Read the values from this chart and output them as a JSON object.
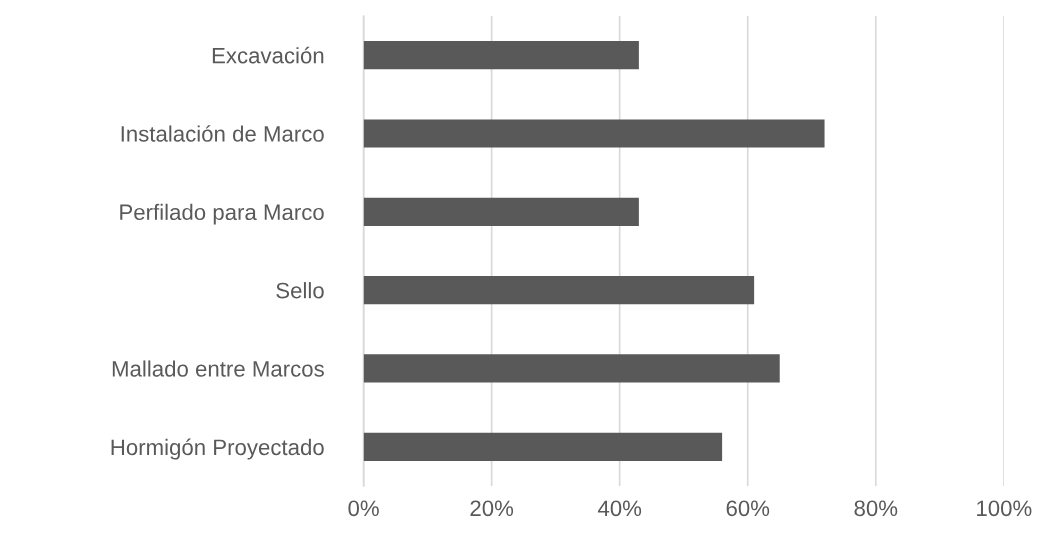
{
  "chart_data": {
    "type": "bar",
    "orientation": "horizontal",
    "categories": [
      "Excavación",
      "Instalación de Marco",
      "Perfilado para Marco",
      "Sello",
      "Mallado entre Marcos",
      "Hormigón Proyectado"
    ],
    "values": [
      43,
      72,
      43,
      61,
      65,
      56
    ],
    "color": "#595959",
    "xlim": [
      0,
      100
    ],
    "xticks": [
      {
        "value": 0,
        "label": "0%"
      },
      {
        "value": 20,
        "label": "20%"
      },
      {
        "value": 40,
        "label": "40%"
      },
      {
        "value": 60,
        "label": "60%"
      },
      {
        "value": 80,
        "label": "80%"
      },
      {
        "value": 100,
        "label": "100%"
      }
    ],
    "grid": "x"
  }
}
